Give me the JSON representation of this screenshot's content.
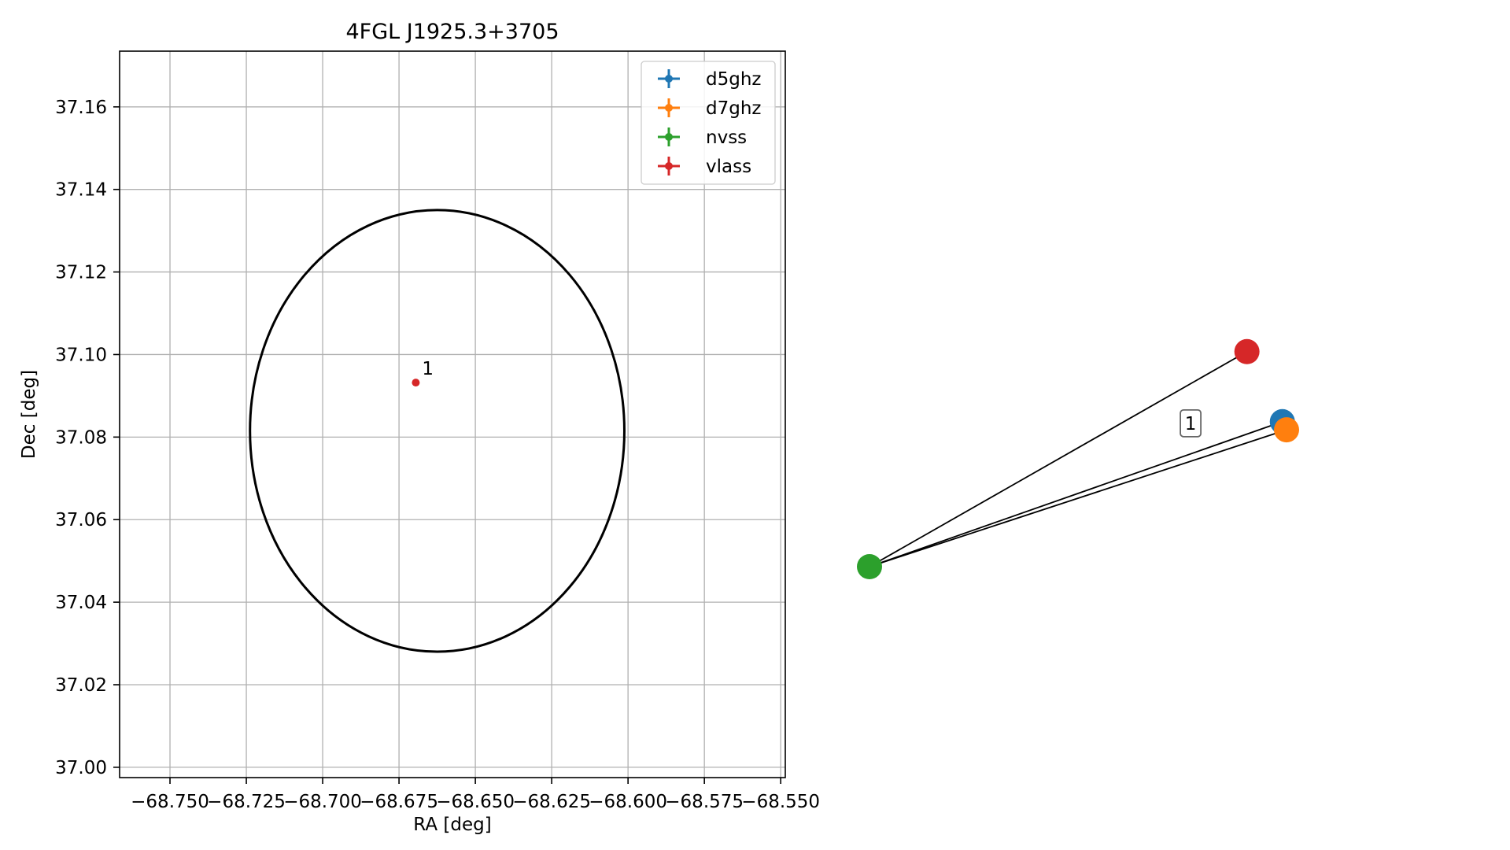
{
  "chart_data": [
    {
      "type": "scatter",
      "title": "4FGL J1925.3+3705",
      "xlabel": "RA [deg]",
      "ylabel": "Dec [deg]",
      "xlim": [
        -68.7665,
        -68.5485
      ],
      "ylim": [
        36.9975,
        37.1735
      ],
      "xticks": [
        -68.75,
        -68.725,
        -68.7,
        -68.675,
        -68.65,
        -68.625,
        -68.6,
        -68.575,
        -68.55
      ],
      "xtick_labels": [
        "−68.750",
        "−68.725",
        "−68.700",
        "−68.675",
        "−68.650",
        "−68.625",
        "−68.600",
        "−68.575",
        "−68.550"
      ],
      "yticks": [
        37.0,
        37.02,
        37.04,
        37.06,
        37.08,
        37.1,
        37.12,
        37.14,
        37.16
      ],
      "ytick_labels": [
        "37.00",
        "37.02",
        "37.04",
        "37.06",
        "37.08",
        "37.10",
        "37.12",
        "37.14",
        "37.16"
      ],
      "grid": true,
      "legend_position": "top-right",
      "ellipse": {
        "center": [
          -68.6625,
          37.0815
        ],
        "ra_semi_axis": 0.0613,
        "dec_semi_axis": 0.0535,
        "color": "#000000"
      },
      "series": [
        {
          "name": "d5ghz",
          "color": "#1f77b4",
          "points": []
        },
        {
          "name": "d7ghz",
          "color": "#ff7f0e",
          "points": []
        },
        {
          "name": "nvss",
          "color": "#2ca02c",
          "points": []
        },
        {
          "name": "vlass",
          "color": "#d62728",
          "points": [
            [
              -68.6695,
              37.0932
            ]
          ]
        }
      ],
      "annotations": [
        {
          "text": "1",
          "x": -68.6695,
          "y": 37.0932
        }
      ]
    },
    {
      "type": "network",
      "nodes": [
        {
          "id": "nvss",
          "color": "#2ca02c",
          "x": 0.0,
          "y": 0.0
        },
        {
          "id": "vlass",
          "color": "#d62728",
          "x": 0.905,
          "y": 0.66
        },
        {
          "id": "d5ghz",
          "color": "#1f77b4",
          "x": 0.99,
          "y": 0.445
        },
        {
          "id": "d7ghz",
          "color": "#ff7f0e",
          "x": 1.0,
          "y": 0.42
        }
      ],
      "edges": [
        [
          "nvss",
          "vlass"
        ],
        [
          "nvss",
          "d5ghz"
        ],
        [
          "nvss",
          "d7ghz"
        ]
      ],
      "box_labels": [
        {
          "text": "1",
          "x": 0.77,
          "y": 0.44
        }
      ]
    }
  ]
}
